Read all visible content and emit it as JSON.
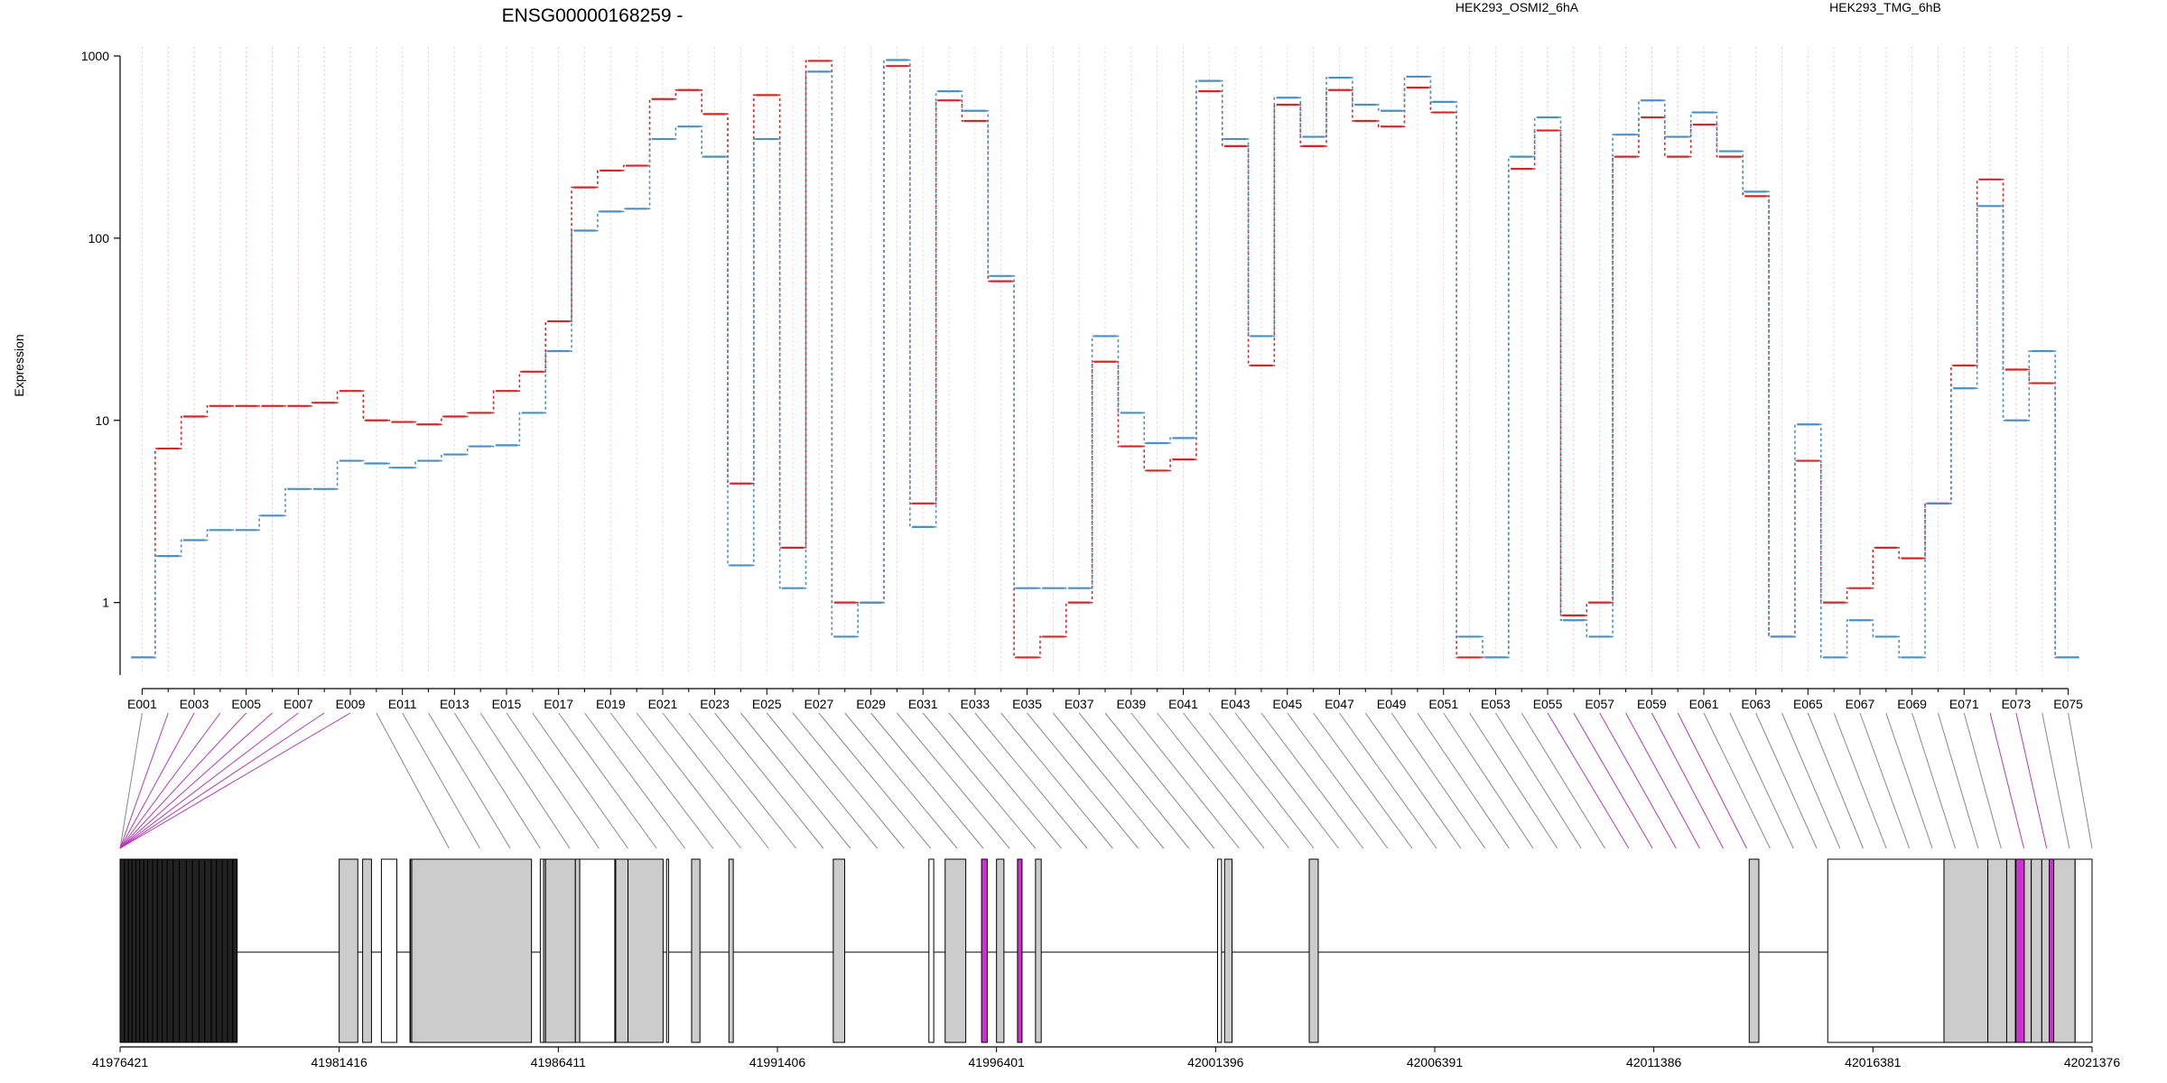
{
  "chart_data": {
    "type": "line",
    "title": "ENSG00000168259 -",
    "ylabel": "Expression",
    "xlabel": "",
    "y_scale": "log",
    "ylim": [
      0.4,
      1000
    ],
    "y_ticks": [
      1,
      10,
      100,
      1000
    ],
    "y_tick_labels": [
      "1",
      "10",
      "100",
      "1000"
    ],
    "grid": "vertical dotted per exon",
    "legend_placement": "top-right",
    "categories": [
      "E001",
      "E002",
      "E003",
      "E004",
      "E005",
      "E006",
      "E007",
      "E008",
      "E009",
      "E010",
      "E011",
      "E012",
      "E013",
      "E014",
      "E015",
      "E016",
      "E017",
      "E018",
      "E019",
      "E020",
      "E021",
      "E022",
      "E023",
      "E024",
      "E025",
      "E026",
      "E027",
      "E028",
      "E029",
      "E030",
      "E031",
      "E032",
      "E033",
      "E034",
      "E035",
      "E036",
      "E037",
      "E038",
      "E039",
      "E040",
      "E041",
      "E042",
      "E043",
      "E044",
      "E045",
      "E046",
      "E047",
      "E048",
      "E049",
      "E050",
      "E051",
      "E052",
      "E053",
      "E054",
      "E055",
      "E056",
      "E057",
      "E058",
      "E059",
      "E060",
      "E061",
      "E062",
      "E063",
      "E064",
      "E065",
      "E066",
      "E067",
      "E068",
      "E069",
      "E070",
      "E071",
      "E072",
      "E073",
      "E074",
      "E075"
    ],
    "x_tick_labels": [
      "E001",
      "E003",
      "E005",
      "E007",
      "E009",
      "E011",
      "E013",
      "E015",
      "E017",
      "E019",
      "E021",
      "E023",
      "E025",
      "E027",
      "E029",
      "E031",
      "E033",
      "E035",
      "E037",
      "E039",
      "E041",
      "E043",
      "E045",
      "E047",
      "E049",
      "E051",
      "E053",
      "E055",
      "E057",
      "E059",
      "E061",
      "E063",
      "E065",
      "E067",
      "E069",
      "E071",
      "E073",
      "E075"
    ],
    "series": [
      {
        "name": "HEK293_OSMI2_6hA",
        "color": "#d62728",
        "values": [
          0.5,
          7,
          10.5,
          12,
          12,
          12,
          12,
          12.5,
          14.5,
          10,
          9.8,
          9.5,
          10.5,
          11,
          14.5,
          18.5,
          35,
          190,
          235,
          250,
          580,
          650,
          480,
          4.5,
          610,
          2,
          940,
          1,
          1,
          880,
          3.5,
          570,
          440,
          58,
          0.5,
          0.65,
          1,
          21,
          7.2,
          5.3,
          6.1,
          640,
          320,
          20,
          540,
          320,
          650,
          440,
          410,
          670,
          490,
          0.5,
          0.5,
          240,
          390,
          0.85,
          1,
          280,
          460,
          280,
          420,
          280,
          170,
          0.65,
          6,
          1,
          1.2,
          2,
          1.75,
          3.5,
          20,
          210,
          19,
          16,
          0.5
        ]
      },
      {
        "name": "HEK293_TMG_6hB",
        "color": "#4a90c4",
        "values": [
          0.5,
          1.8,
          2.2,
          2.5,
          2.5,
          3,
          4.2,
          4.2,
          6,
          5.8,
          5.5,
          6,
          6.5,
          7.2,
          7.3,
          11,
          24,
          110,
          140,
          145,
          350,
          410,
          280,
          1.6,
          350,
          1.2,
          820,
          0.65,
          1,
          950,
          2.6,
          640,
          500,
          62,
          1.2,
          1.2,
          1.2,
          29,
          11,
          7.5,
          8,
          730,
          350,
          29,
          590,
          360,
          760,
          540,
          500,
          770,
          560,
          0.65,
          0.5,
          280,
          460,
          0.8,
          0.65,
          370,
          570,
          360,
          490,
          300,
          180,
          0.65,
          9.5,
          0.5,
          0.8,
          0.65,
          0.5,
          3.5,
          15,
          150,
          10,
          24,
          0.5
        ]
      }
    ],
    "exon_highlight": [
      "E002",
      "E003",
      "E004",
      "E005",
      "E006",
      "E007",
      "E008",
      "E009",
      "E055",
      "E056",
      "E057",
      "E058",
      "E059",
      "E060",
      "E072",
      "E073"
    ],
    "genomic_axis": {
      "tick_labels": [
        "41976421",
        "41981416",
        "41986411",
        "41991406",
        "41996401",
        "42001396",
        "42006391",
        "42011386",
        "42016381",
        "42021376"
      ],
      "range": [
        41976421,
        42021376
      ]
    }
  }
}
